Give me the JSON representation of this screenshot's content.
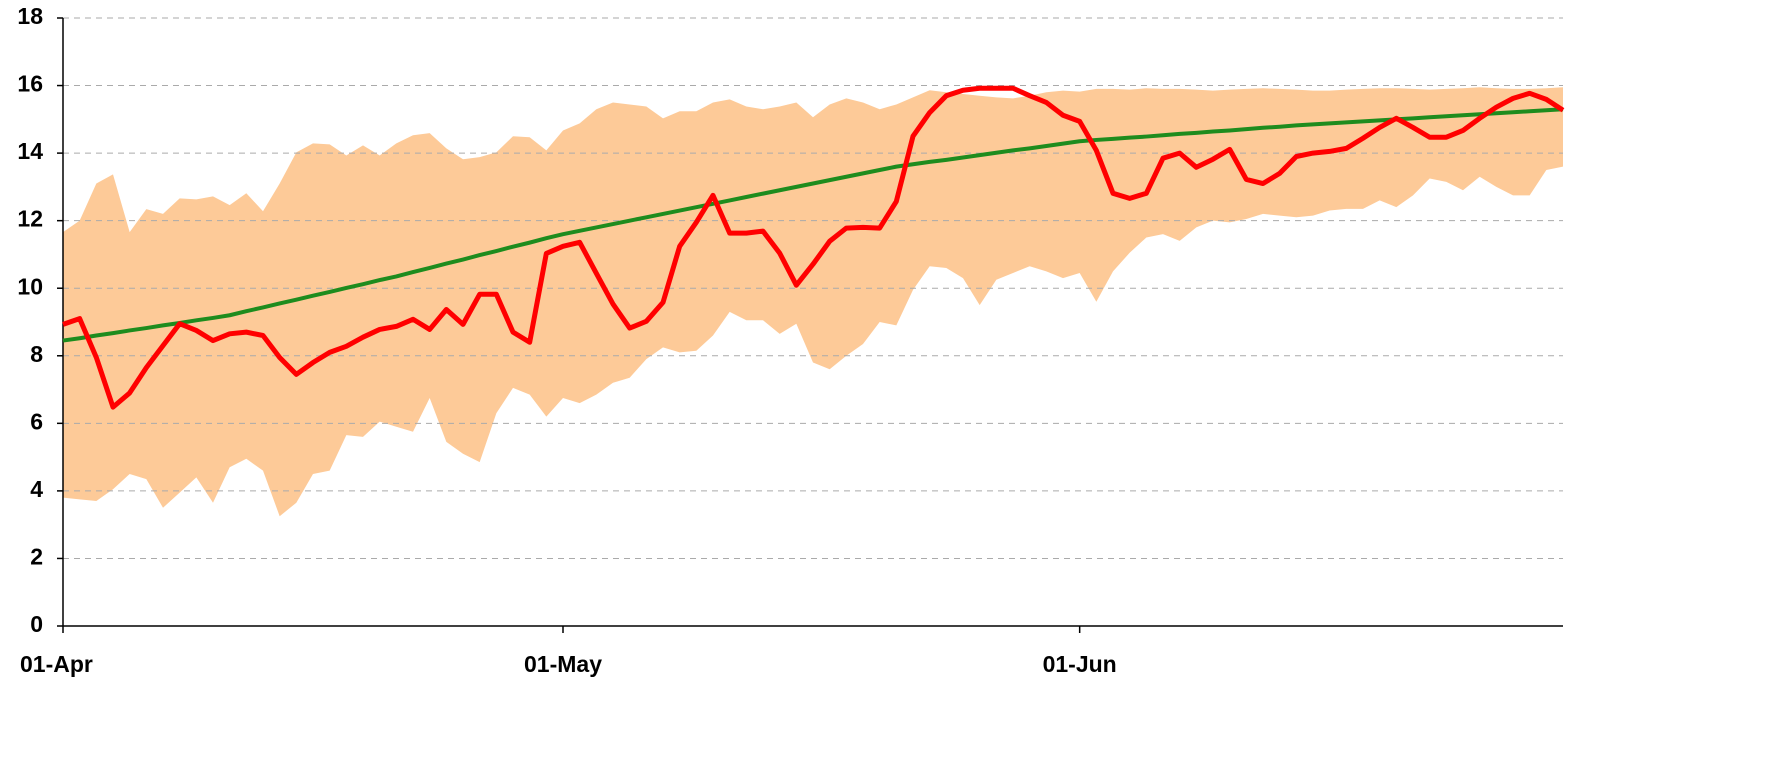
{
  "chart_data": {
    "type": "line",
    "categories": [
      "01-Apr",
      null,
      null,
      null,
      null,
      null,
      null,
      null,
      null,
      null,
      null,
      null,
      null,
      null,
      null,
      null,
      null,
      null,
      null,
      null,
      null,
      null,
      null,
      null,
      null,
      null,
      null,
      null,
      null,
      null,
      "01-May",
      null,
      null,
      null,
      null,
      null,
      null,
      null,
      null,
      null,
      null,
      null,
      null,
      null,
      null,
      null,
      null,
      null,
      null,
      null,
      null,
      null,
      null,
      null,
      null,
      null,
      null,
      null,
      null,
      null,
      null,
      "01-Jun",
      null,
      null,
      null,
      null,
      null,
      null,
      null,
      null,
      null,
      null,
      null,
      null,
      null,
      null,
      null,
      null,
      null,
      null,
      null,
      null,
      null,
      null,
      null,
      null,
      null,
      null,
      null,
      null,
      null
    ],
    "band": {
      "color": "#fdca98",
      "upper": [
        11.66,
        12.0,
        13.1,
        13.37,
        11.66,
        12.34,
        12.2,
        12.66,
        12.63,
        12.72,
        12.46,
        12.81,
        12.28,
        13.1,
        14.02,
        14.29,
        14.26,
        13.93,
        14.23,
        13.93,
        14.29,
        14.53,
        14.59,
        14.14,
        13.82,
        13.88,
        14.02,
        14.5,
        14.47,
        14.08,
        14.67,
        14.88,
        15.3,
        15.5,
        15.44,
        15.38,
        15.03,
        15.24,
        15.24,
        15.5,
        15.59,
        15.38,
        15.3,
        15.38,
        15.5,
        15.06,
        15.44,
        15.62,
        15.5,
        15.3,
        15.44,
        15.65,
        15.86,
        15.8,
        15.75,
        15.7,
        15.65,
        15.62,
        15.7,
        15.8,
        15.85,
        15.82,
        15.9,
        15.9,
        15.88,
        15.92,
        15.9,
        15.9,
        15.88,
        15.85,
        15.88,
        15.9,
        15.92,
        15.9,
        15.88,
        15.85,
        15.85,
        15.88,
        15.9,
        15.92,
        15.92,
        15.9,
        15.88,
        15.9,
        15.92,
        15.95,
        15.92,
        15.9,
        15.9,
        15.92,
        15.95
      ],
      "lower": [
        3.8,
        3.75,
        3.7,
        4.05,
        4.5,
        4.35,
        3.5,
        3.95,
        4.4,
        3.65,
        4.7,
        4.95,
        4.6,
        3.25,
        3.65,
        4.5,
        4.6,
        5.65,
        5.6,
        6.05,
        5.9,
        5.75,
        6.75,
        5.45,
        5.1,
        4.85,
        6.3,
        7.05,
        6.85,
        6.2,
        6.75,
        6.6,
        6.85,
        7.2,
        7.35,
        7.9,
        8.25,
        8.1,
        8.15,
        8.6,
        9.3,
        9.05,
        9.05,
        8.65,
        8.95,
        7.8,
        7.6,
        8.0,
        8.35,
        9.0,
        8.9,
        9.95,
        10.65,
        10.6,
        10.3,
        9.5,
        10.25,
        10.45,
        10.65,
        10.5,
        10.3,
        10.45,
        9.6,
        10.5,
        11.05,
        11.5,
        11.6,
        11.4,
        11.8,
        12.0,
        11.95,
        12.05,
        12.2,
        12.15,
        12.1,
        12.15,
        12.3,
        12.35,
        12.35,
        12.6,
        12.4,
        12.75,
        13.25,
        13.15,
        12.9,
        13.3,
        13.0,
        12.75,
        12.75,
        13.5,
        13.6
      ]
    },
    "series": [
      {
        "color": "#1e8c1e",
        "values": [
          8.45,
          8.52,
          8.6,
          8.67,
          8.75,
          8.82,
          8.9,
          8.97,
          9.05,
          9.12,
          9.2,
          9.32,
          9.43,
          9.55,
          9.66,
          9.78,
          9.89,
          10.01,
          10.12,
          10.24,
          10.35,
          10.48,
          10.6,
          10.73,
          10.85,
          10.98,
          11.1,
          11.23,
          11.35,
          11.48,
          11.6,
          11.7,
          11.8,
          11.9,
          12.0,
          12.1,
          12.2,
          12.3,
          12.4,
          12.5,
          12.6,
          12.7,
          12.8,
          12.9,
          13.0,
          13.1,
          13.2,
          13.3,
          13.4,
          13.5,
          13.6,
          13.67,
          13.74,
          13.8,
          13.87,
          13.94,
          14.01,
          14.08,
          14.14,
          14.21,
          14.28,
          14.35,
          14.39,
          14.42,
          14.46,
          14.49,
          14.53,
          14.57,
          14.6,
          14.64,
          14.67,
          14.71,
          14.75,
          14.78,
          14.82,
          14.85,
          14.88,
          14.91,
          14.94,
          14.97,
          15.0,
          15.03,
          15.06,
          15.09,
          15.12,
          15.15,
          15.18,
          15.21,
          15.24,
          15.27,
          15.3
        ]
      },
      {
        "color": "#ff0000",
        "values": [
          8.93,
          9.1,
          7.95,
          6.48,
          6.9,
          7.65,
          8.3,
          8.95,
          8.75,
          8.45,
          8.65,
          8.7,
          8.6,
          7.95,
          7.45,
          7.8,
          8.1,
          8.28,
          8.55,
          8.78,
          8.87,
          9.08,
          8.78,
          9.37,
          8.93,
          9.82,
          9.82,
          8.7,
          8.4,
          11.03,
          11.24,
          11.36,
          10.44,
          9.53,
          8.82,
          9.02,
          9.58,
          11.24,
          11.95,
          12.75,
          11.63,
          11.63,
          11.69,
          11.04,
          10.09,
          10.71,
          11.39,
          11.78,
          11.8,
          11.78,
          12.57,
          14.5,
          15.2,
          15.7,
          15.86,
          15.92,
          15.92,
          15.92,
          15.7,
          15.5,
          15.12,
          14.94,
          14.08,
          12.81,
          12.66,
          12.81,
          13.85,
          14.0,
          13.58,
          13.82,
          14.11,
          13.22,
          13.1,
          13.4,
          13.9,
          14.0,
          14.05,
          14.14,
          14.44,
          14.76,
          15.03,
          14.76,
          14.47,
          14.47,
          14.67,
          15.03,
          15.36,
          15.62,
          15.77,
          15.59,
          15.27
        ]
      }
    ],
    "ylim": [
      0,
      18
    ],
    "yticks": [
      0,
      2,
      4,
      6,
      8,
      10,
      12,
      14,
      16,
      18
    ],
    "grid": true
  }
}
